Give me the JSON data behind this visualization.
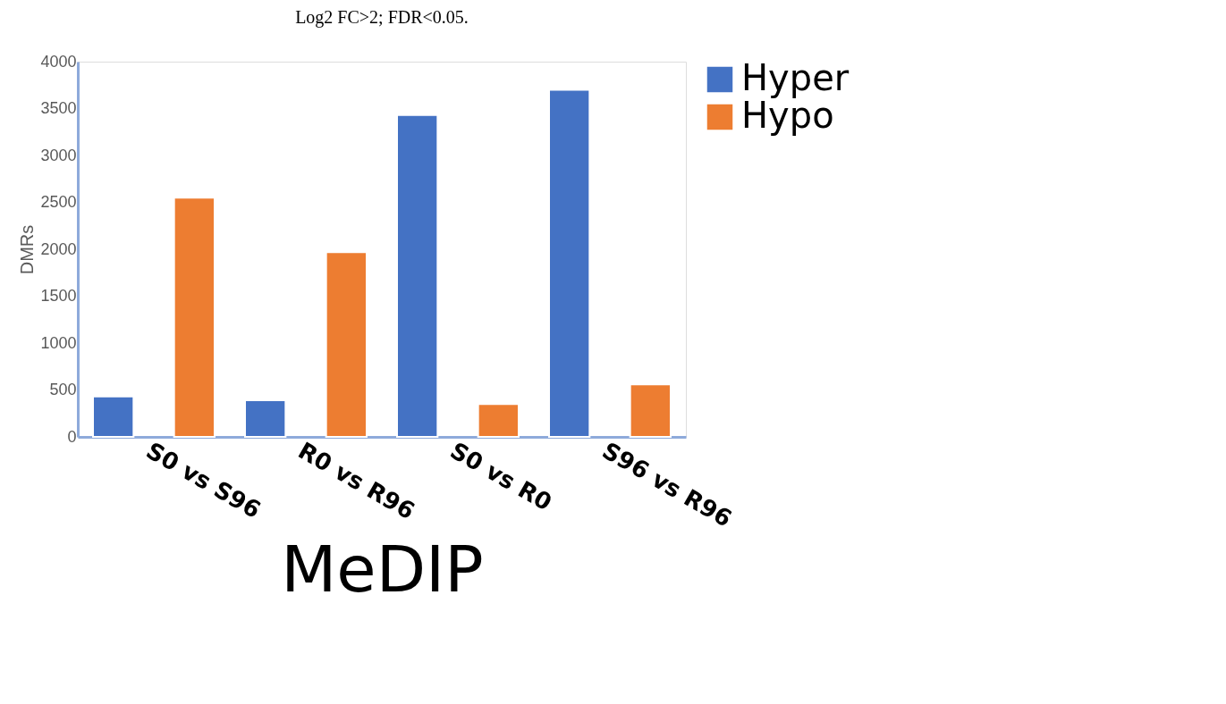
{
  "chart_data": {
    "type": "bar",
    "title": "Log2 FC>2; FDR<0.05.",
    "xlabel": "MeDIP",
    "ylabel": "DMRs",
    "categories": [
      "S0 vs S96",
      "R0 vs R96",
      "S0 vs R0",
      "S96 vs R96"
    ],
    "series": [
      {
        "name": "Hyper",
        "color": "#4472c4",
        "values": [
          430,
          390,
          3430,
          3700
        ]
      },
      {
        "name": "Hypo",
        "color": "#ed7d31",
        "values": [
          2550,
          1970,
          350,
          560
        ]
      }
    ],
    "ylim": [
      0,
      4000
    ],
    "yticks": [
      0,
      500,
      1000,
      1500,
      2000,
      2500,
      3000,
      3500,
      4000
    ],
    "grid": false,
    "legend": "right"
  }
}
